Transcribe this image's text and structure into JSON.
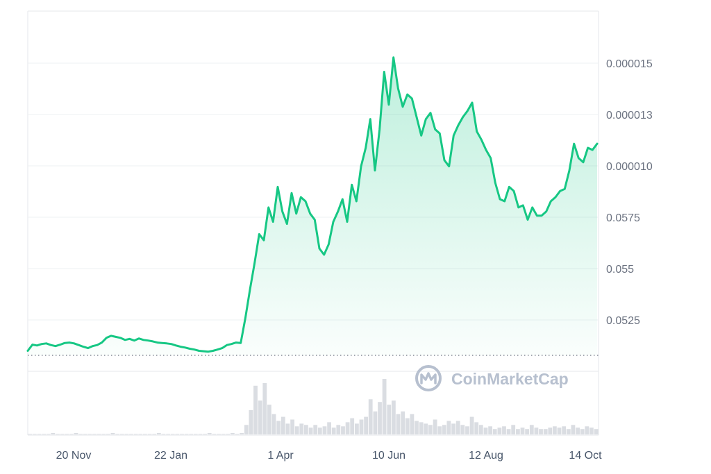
{
  "chart_data": {
    "type": "area",
    "title": "",
    "xlabel": "",
    "ylabel": "",
    "x_tick_labels": [
      "20 Nov",
      "22 Jan",
      "1 Apr",
      "10 Jun",
      "12 Aug",
      "14 Oct"
    ],
    "y_tick_labels": [
      "0.0525",
      "0.055",
      "0.0575",
      "0.000010",
      "0.000013",
      "0.000015"
    ],
    "y_axis_side": "right",
    "grid": true,
    "watermark": "CoinMarketCap",
    "colors": {
      "line": "#16c784",
      "fill": "#16c784",
      "grid": "#eef0f3",
      "axis": "#e5e7eb",
      "baseline_dots": "#6b7280"
    },
    "price_series": [
      0.22,
      0.52,
      0.48,
      0.55,
      0.58,
      0.5,
      0.45,
      0.52,
      0.6,
      0.62,
      0.58,
      0.5,
      0.42,
      0.35,
      0.45,
      0.5,
      0.62,
      0.85,
      0.95,
      0.9,
      0.85,
      0.75,
      0.8,
      0.72,
      0.82,
      0.75,
      0.72,
      0.68,
      0.62,
      0.6,
      0.58,
      0.55,
      0.48,
      0.42,
      0.38,
      0.32,
      0.28,
      0.22,
      0.2,
      0.18,
      0.22,
      0.28,
      0.35,
      0.5,
      0.55,
      0.62,
      0.6,
      1.8,
      3.2,
      4.5,
      5.9,
      5.6,
      7.2,
      6.5,
      8.2,
      7.0,
      6.4,
      7.9,
      6.9,
      7.7,
      7.5,
      6.9,
      6.6,
      5.2,
      4.9,
      5.4,
      6.5,
      7.0,
      7.6,
      6.5,
      8.3,
      7.5,
      9.2,
      10.1,
      11.5,
      9.0,
      11.0,
      13.8,
      12.2,
      14.5,
      13.0,
      12.1,
      12.7,
      12.5,
      11.6,
      10.7,
      11.5,
      11.8,
      11.0,
      10.8,
      9.5,
      9.2,
      10.7,
      11.2,
      11.6,
      11.9,
      12.3,
      10.9,
      10.5,
      10.0,
      9.6,
      8.4,
      7.6,
      7.5,
      8.2,
      8.0,
      7.2,
      7.3,
      6.6,
      7.2,
      6.8,
      6.8,
      7.0,
      7.5,
      7.7,
      8.0,
      8.1,
      9.0,
      10.3,
      9.6,
      9.4,
      10.1,
      10.0,
      10.3
    ],
    "volume_series": [
      1,
      1,
      1,
      1,
      1,
      2,
      1,
      1,
      1,
      1,
      2,
      1,
      1,
      1,
      1,
      1,
      1,
      1,
      2,
      1,
      1,
      1,
      1,
      1,
      1,
      1,
      1,
      1,
      2,
      1,
      1,
      1,
      1,
      1,
      1,
      1,
      1,
      1,
      1,
      2,
      1,
      1,
      1,
      1,
      2,
      1,
      2,
      14,
      36,
      72,
      50,
      76,
      44,
      30,
      20,
      26,
      16,
      22,
      12,
      16,
      14,
      10,
      14,
      10,
      12,
      18,
      10,
      14,
      12,
      18,
      24,
      16,
      22,
      26,
      52,
      34,
      48,
      82,
      44,
      50,
      30,
      34,
      24,
      30,
      20,
      18,
      16,
      14,
      22,
      12,
      14,
      20,
      16,
      20,
      14,
      12,
      26,
      18,
      14,
      10,
      12,
      8,
      10,
      12,
      8,
      14,
      8,
      10,
      8,
      14,
      10,
      8,
      8,
      10,
      12,
      10,
      12,
      8,
      14,
      10,
      8,
      12,
      10,
      8
    ]
  }
}
